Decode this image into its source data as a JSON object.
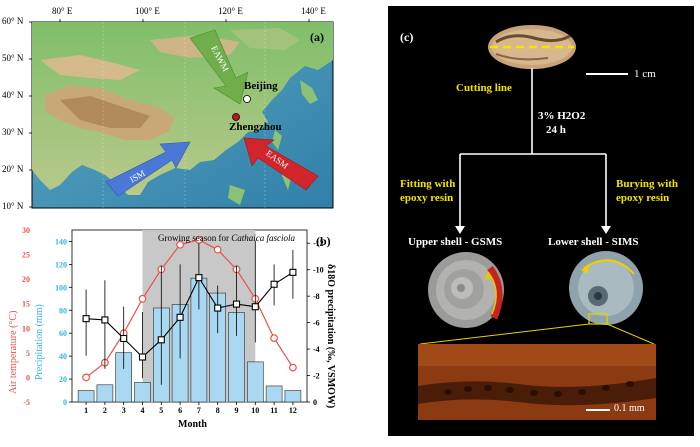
{
  "panel_a": {
    "label": "(a)",
    "lon_ticks": [
      "80° E",
      "100° E",
      "120° E",
      "140° E"
    ],
    "lat_ticks": [
      "60° N",
      "50° N",
      "40° N",
      "30° N",
      "20° N",
      "10° N"
    ],
    "arrows": {
      "eawm": "EAWM",
      "ism": "ISM",
      "easm": "EASM"
    },
    "cities": {
      "beijing": "Beijing",
      "zhengzhou": "Zhengzhou"
    }
  },
  "panel_b": {
    "label": "(b)",
    "season_label_prefix": "Growing season for ",
    "season_label_species": "Cathaica fasciola",
    "y_left_outer_label": "Air temperature (°C)",
    "y_left_inner_label": "Precipitation (mm)",
    "y_right_label": "δ18O precipitation (‰, VSMOW)",
    "x_label": "Month",
    "colors": {
      "temperature": "#e8514a",
      "precipitation": "#33b5e5",
      "bar_fill": "#a9d8f2",
      "season_shade": "#c8c8c8"
    }
  },
  "chart_data": {
    "type": "bar",
    "x": [
      1,
      2,
      3,
      4,
      5,
      6,
      7,
      8,
      9,
      10,
      11,
      12
    ],
    "xlabel": "Month",
    "series": [
      {
        "name": "Precipitation",
        "kind": "bar",
        "axis": "precipitation",
        "values": [
          10,
          15,
          43,
          17,
          82,
          85,
          108,
          95,
          78,
          35,
          14,
          10
        ]
      },
      {
        "name": "Air temperature",
        "kind": "line-circle",
        "axis": "temperature",
        "values": [
          0,
          3,
          9,
          16,
          22,
          27,
          28,
          26,
          22,
          16,
          8,
          2
        ]
      },
      {
        "name": "δ18O precipitation",
        "kind": "line-square",
        "axis": "d18O",
        "values": [
          -6.3,
          -6.2,
          -4.8,
          -3.4,
          -4.7,
          -6.4,
          -9.4,
          -7.1,
          -7.4,
          -7.2,
          -8.9,
          -9.8
        ],
        "error_low": [
          -3.5,
          -2.5,
          -2.5,
          -1.8,
          -1.3,
          -3.3,
          -7.0,
          -5.2,
          -5.0,
          -4.5,
          -7.3,
          -7.8
        ],
        "error_high": [
          -8.5,
          -9.2,
          -7.2,
          -6.8,
          -10.3,
          -10.4,
          -12.0,
          -8.8,
          -10.3,
          -12.2,
          -10.4,
          -11.5
        ]
      }
    ],
    "axes": {
      "temperature": {
        "ylim": [
          -5,
          30
        ],
        "ticks": [
          "-5",
          "0",
          "5",
          "10",
          "15",
          "20",
          "25",
          "30"
        ]
      },
      "precipitation": {
        "ylim": [
          0,
          150
        ],
        "ticks": [
          "0",
          "20",
          "40",
          "60",
          "80",
          "100",
          "120",
          "140"
        ]
      },
      "d18O": {
        "ylim": [
          0,
          -13
        ],
        "ticks": [
          "0",
          "-2",
          "-4",
          "-6",
          "-8",
          "-10",
          "-12"
        ]
      }
    },
    "x_ticks": [
      "1",
      "2",
      "3",
      "4",
      "5",
      "6",
      "7",
      "8",
      "9",
      "10",
      "11",
      "12"
    ],
    "season_range": [
      4,
      10
    ]
  },
  "panel_c": {
    "label": "(c)",
    "cutting_line": "Cutting line",
    "scale_1cm": "1 cm",
    "treatment_line1": "3% H2O2",
    "treatment_line2": "24 h",
    "left_step_line1": "Fitting with",
    "left_step_line2": "epoxy resin",
    "right_step_line1": "Burying with",
    "right_step_line2": "epoxy resin",
    "upper_shell": "Upper shell - GSMS",
    "lower_shell": "Lower shell - SIMS",
    "scale_01mm": "0.1 mm"
  }
}
